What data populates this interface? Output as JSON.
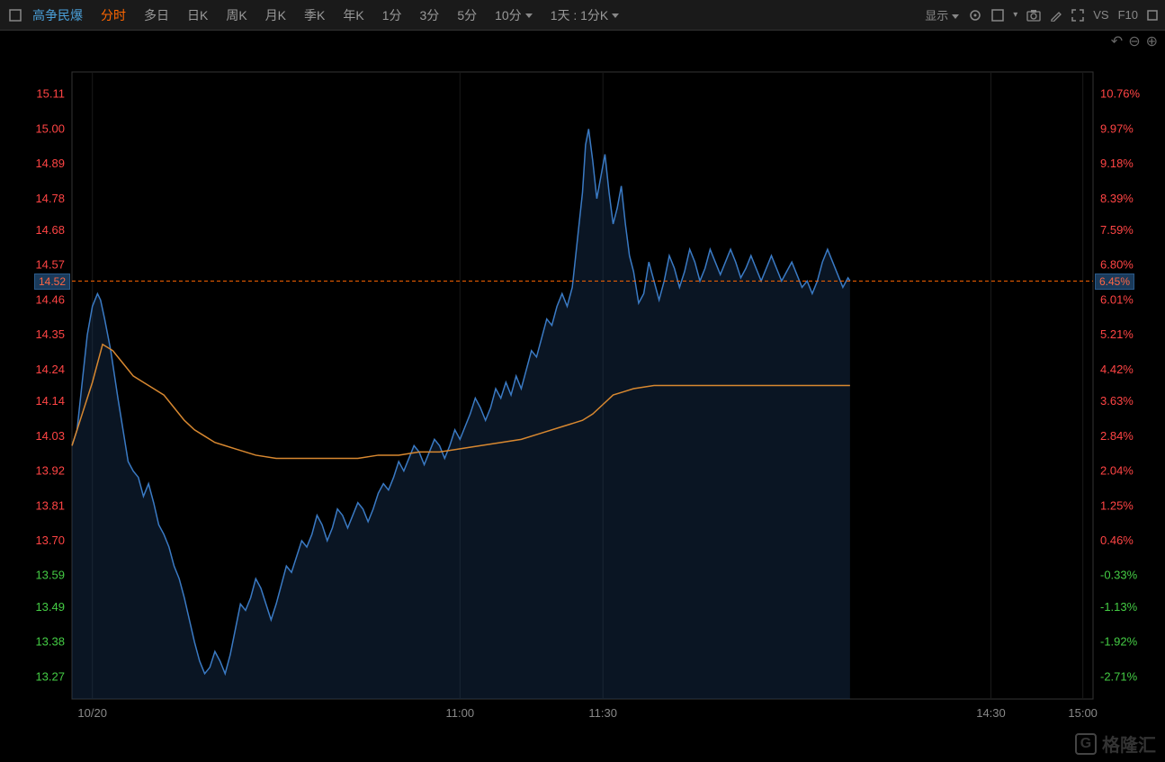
{
  "toolbar": {
    "stock_name": "高争民爆",
    "tabs": [
      {
        "label": "分时",
        "active": true
      },
      {
        "label": "多日",
        "active": false
      },
      {
        "label": "日K",
        "active": false
      },
      {
        "label": "周K",
        "active": false
      },
      {
        "label": "月K",
        "active": false
      },
      {
        "label": "季K",
        "active": false
      },
      {
        "label": "年K",
        "active": false
      },
      {
        "label": "1分",
        "active": false
      },
      {
        "label": "3分",
        "active": false
      },
      {
        "label": "5分",
        "active": false
      },
      {
        "label": "10分",
        "active": false,
        "dropdown": true
      },
      {
        "label": "1天 : 1分K",
        "active": false,
        "dropdown": true
      }
    ],
    "display_label": "显示",
    "vs_label": "VS",
    "f10_label": "F10"
  },
  "chart": {
    "type": "line",
    "background_color": "#000000",
    "grid_color": "#1a1a1a",
    "axis_color": "#333333",
    "price_line_color": "#3a7ac4",
    "price_fill_color": "rgba(30,60,100,0.35)",
    "avg_line_color": "#d88830",
    "current_line_color": "#ff6600",
    "left_axis": {
      "ticks": [
        {
          "v": 15.11,
          "color": "#ff4444"
        },
        {
          "v": 15.0,
          "color": "#ff4444"
        },
        {
          "v": 14.89,
          "color": "#ff4444"
        },
        {
          "v": 14.78,
          "color": "#ff4444"
        },
        {
          "v": 14.68,
          "color": "#ff4444"
        },
        {
          "v": 14.57,
          "color": "#ff4444"
        },
        {
          "v": 14.46,
          "color": "#ff4444"
        },
        {
          "v": 14.35,
          "color": "#ff4444"
        },
        {
          "v": 14.24,
          "color": "#ff4444"
        },
        {
          "v": 14.14,
          "color": "#ff4444"
        },
        {
          "v": 14.03,
          "color": "#ff4444"
        },
        {
          "v": 13.92,
          "color": "#ff4444"
        },
        {
          "v": 13.81,
          "color": "#ff4444"
        },
        {
          "v": 13.7,
          "color": "#ff4444"
        },
        {
          "v": 13.59,
          "color": "#44cc44"
        },
        {
          "v": 13.49,
          "color": "#44cc44"
        },
        {
          "v": 13.38,
          "color": "#44cc44"
        },
        {
          "v": 13.27,
          "color": "#44cc44"
        }
      ],
      "min": 13.2,
      "max": 15.18
    },
    "right_axis": {
      "ticks": [
        {
          "v": "10.76%",
          "y": 15.11,
          "color": "#ff4444"
        },
        {
          "v": "9.97%",
          "y": 15.0,
          "color": "#ff4444"
        },
        {
          "v": "9.18%",
          "y": 14.89,
          "color": "#ff4444"
        },
        {
          "v": "8.39%",
          "y": 14.78,
          "color": "#ff4444"
        },
        {
          "v": "7.59%",
          "y": 14.68,
          "color": "#ff4444"
        },
        {
          "v": "6.80%",
          "y": 14.57,
          "color": "#ff4444"
        },
        {
          "v": "6.01%",
          "y": 14.46,
          "color": "#ff4444"
        },
        {
          "v": "5.21%",
          "y": 14.35,
          "color": "#ff4444"
        },
        {
          "v": "4.42%",
          "y": 14.24,
          "color": "#ff4444"
        },
        {
          "v": "3.63%",
          "y": 14.14,
          "color": "#ff4444"
        },
        {
          "v": "2.84%",
          "y": 14.03,
          "color": "#ff4444"
        },
        {
          "v": "2.04%",
          "y": 13.92,
          "color": "#ff4444"
        },
        {
          "v": "1.25%",
          "y": 13.81,
          "color": "#ff4444"
        },
        {
          "v": "0.46%",
          "y": 13.7,
          "color": "#ff4444"
        },
        {
          "v": "-0.33%",
          "y": 13.59,
          "color": "#44cc44"
        },
        {
          "v": "-1.13%",
          "y": 13.49,
          "color": "#44cc44"
        },
        {
          "v": "-1.92%",
          "y": 13.38,
          "color": "#44cc44"
        },
        {
          "v": "-2.71%",
          "y": 13.27,
          "color": "#44cc44"
        }
      ]
    },
    "x_axis": {
      "labels": [
        {
          "x": 0.02,
          "label": "10/20"
        },
        {
          "x": 0.38,
          "label": "11:00"
        },
        {
          "x": 0.52,
          "label": "11:30"
        },
        {
          "x": 0.9,
          "label": "14:30"
        },
        {
          "x": 0.99,
          "label": "15:00"
        }
      ],
      "color": "#888888"
    },
    "current_price": 14.52,
    "current_price_label": "14.52",
    "current_pct_label": "6.45%",
    "price_series": [
      [
        0.0,
        14.0
      ],
      [
        0.005,
        14.05
      ],
      [
        0.01,
        14.2
      ],
      [
        0.015,
        14.35
      ],
      [
        0.02,
        14.44
      ],
      [
        0.025,
        14.48
      ],
      [
        0.028,
        14.46
      ],
      [
        0.032,
        14.4
      ],
      [
        0.038,
        14.3
      ],
      [
        0.045,
        14.15
      ],
      [
        0.05,
        14.05
      ],
      [
        0.055,
        13.95
      ],
      [
        0.06,
        13.92
      ],
      [
        0.065,
        13.9
      ],
      [
        0.07,
        13.84
      ],
      [
        0.075,
        13.88
      ],
      [
        0.08,
        13.82
      ],
      [
        0.085,
        13.75
      ],
      [
        0.09,
        13.72
      ],
      [
        0.095,
        13.68
      ],
      [
        0.1,
        13.62
      ],
      [
        0.105,
        13.58
      ],
      [
        0.11,
        13.52
      ],
      [
        0.115,
        13.45
      ],
      [
        0.12,
        13.38
      ],
      [
        0.125,
        13.32
      ],
      [
        0.13,
        13.28
      ],
      [
        0.135,
        13.3
      ],
      [
        0.14,
        13.35
      ],
      [
        0.145,
        13.32
      ],
      [
        0.15,
        13.28
      ],
      [
        0.155,
        13.34
      ],
      [
        0.16,
        13.42
      ],
      [
        0.165,
        13.5
      ],
      [
        0.17,
        13.48
      ],
      [
        0.175,
        13.52
      ],
      [
        0.18,
        13.58
      ],
      [
        0.185,
        13.55
      ],
      [
        0.19,
        13.5
      ],
      [
        0.195,
        13.45
      ],
      [
        0.2,
        13.5
      ],
      [
        0.205,
        13.56
      ],
      [
        0.21,
        13.62
      ],
      [
        0.215,
        13.6
      ],
      [
        0.22,
        13.65
      ],
      [
        0.225,
        13.7
      ],
      [
        0.23,
        13.68
      ],
      [
        0.235,
        13.72
      ],
      [
        0.24,
        13.78
      ],
      [
        0.245,
        13.75
      ],
      [
        0.25,
        13.7
      ],
      [
        0.255,
        13.74
      ],
      [
        0.26,
        13.8
      ],
      [
        0.265,
        13.78
      ],
      [
        0.27,
        13.74
      ],
      [
        0.275,
        13.78
      ],
      [
        0.28,
        13.82
      ],
      [
        0.285,
        13.8
      ],
      [
        0.29,
        13.76
      ],
      [
        0.295,
        13.8
      ],
      [
        0.3,
        13.85
      ],
      [
        0.305,
        13.88
      ],
      [
        0.31,
        13.86
      ],
      [
        0.315,
        13.9
      ],
      [
        0.32,
        13.95
      ],
      [
        0.325,
        13.92
      ],
      [
        0.33,
        13.96
      ],
      [
        0.335,
        14.0
      ],
      [
        0.34,
        13.98
      ],
      [
        0.345,
        13.94
      ],
      [
        0.35,
        13.98
      ],
      [
        0.355,
        14.02
      ],
      [
        0.36,
        14.0
      ],
      [
        0.365,
        13.96
      ],
      [
        0.37,
        14.0
      ],
      [
        0.375,
        14.05
      ],
      [
        0.38,
        14.02
      ],
      [
        0.385,
        14.06
      ],
      [
        0.39,
        14.1
      ],
      [
        0.395,
        14.15
      ],
      [
        0.4,
        14.12
      ],
      [
        0.405,
        14.08
      ],
      [
        0.41,
        14.12
      ],
      [
        0.415,
        14.18
      ],
      [
        0.42,
        14.15
      ],
      [
        0.425,
        14.2
      ],
      [
        0.43,
        14.16
      ],
      [
        0.435,
        14.22
      ],
      [
        0.44,
        14.18
      ],
      [
        0.445,
        14.24
      ],
      [
        0.45,
        14.3
      ],
      [
        0.455,
        14.28
      ],
      [
        0.46,
        14.34
      ],
      [
        0.465,
        14.4
      ],
      [
        0.47,
        14.38
      ],
      [
        0.475,
        14.44
      ],
      [
        0.48,
        14.48
      ],
      [
        0.485,
        14.44
      ],
      [
        0.49,
        14.5
      ],
      [
        0.495,
        14.65
      ],
      [
        0.5,
        14.8
      ],
      [
        0.503,
        14.95
      ],
      [
        0.506,
        15.0
      ],
      [
        0.51,
        14.9
      ],
      [
        0.514,
        14.78
      ],
      [
        0.518,
        14.85
      ],
      [
        0.522,
        14.92
      ],
      [
        0.526,
        14.8
      ],
      [
        0.53,
        14.7
      ],
      [
        0.534,
        14.75
      ],
      [
        0.538,
        14.82
      ],
      [
        0.542,
        14.7
      ],
      [
        0.546,
        14.6
      ],
      [
        0.55,
        14.55
      ],
      [
        0.555,
        14.45
      ],
      [
        0.56,
        14.48
      ],
      [
        0.565,
        14.58
      ],
      [
        0.57,
        14.52
      ],
      [
        0.575,
        14.46
      ],
      [
        0.58,
        14.52
      ],
      [
        0.585,
        14.6
      ],
      [
        0.59,
        14.56
      ],
      [
        0.595,
        14.5
      ],
      [
        0.6,
        14.55
      ],
      [
        0.605,
        14.62
      ],
      [
        0.61,
        14.58
      ],
      [
        0.615,
        14.52
      ],
      [
        0.62,
        14.56
      ],
      [
        0.625,
        14.62
      ],
      [
        0.63,
        14.58
      ],
      [
        0.635,
        14.54
      ],
      [
        0.64,
        14.58
      ],
      [
        0.645,
        14.62
      ],
      [
        0.65,
        14.58
      ],
      [
        0.655,
        14.53
      ],
      [
        0.66,
        14.56
      ],
      [
        0.665,
        14.6
      ],
      [
        0.67,
        14.56
      ],
      [
        0.675,
        14.52
      ],
      [
        0.68,
        14.56
      ],
      [
        0.685,
        14.6
      ],
      [
        0.69,
        14.56
      ],
      [
        0.695,
        14.52
      ],
      [
        0.7,
        14.55
      ],
      [
        0.705,
        14.58
      ],
      [
        0.71,
        14.54
      ],
      [
        0.715,
        14.5
      ],
      [
        0.72,
        14.52
      ],
      [
        0.725,
        14.48
      ],
      [
        0.73,
        14.52
      ],
      [
        0.735,
        14.58
      ],
      [
        0.74,
        14.62
      ],
      [
        0.745,
        14.58
      ],
      [
        0.75,
        14.54
      ],
      [
        0.755,
        14.5
      ],
      [
        0.76,
        14.53
      ],
      [
        0.762,
        14.52
      ]
    ],
    "avg_series": [
      [
        0.0,
        14.0
      ],
      [
        0.01,
        14.1
      ],
      [
        0.02,
        14.2
      ],
      [
        0.03,
        14.32
      ],
      [
        0.04,
        14.3
      ],
      [
        0.05,
        14.26
      ],
      [
        0.06,
        14.22
      ],
      [
        0.07,
        14.2
      ],
      [
        0.08,
        14.18
      ],
      [
        0.09,
        14.16
      ],
      [
        0.1,
        14.12
      ],
      [
        0.11,
        14.08
      ],
      [
        0.12,
        14.05
      ],
      [
        0.13,
        14.03
      ],
      [
        0.14,
        14.01
      ],
      [
        0.15,
        14.0
      ],
      [
        0.16,
        13.99
      ],
      [
        0.17,
        13.98
      ],
      [
        0.18,
        13.97
      ],
      [
        0.2,
        13.96
      ],
      [
        0.22,
        13.96
      ],
      [
        0.24,
        13.96
      ],
      [
        0.26,
        13.96
      ],
      [
        0.28,
        13.96
      ],
      [
        0.3,
        13.97
      ],
      [
        0.32,
        13.97
      ],
      [
        0.34,
        13.98
      ],
      [
        0.36,
        13.98
      ],
      [
        0.38,
        13.99
      ],
      [
        0.4,
        14.0
      ],
      [
        0.42,
        14.01
      ],
      [
        0.44,
        14.02
      ],
      [
        0.46,
        14.04
      ],
      [
        0.48,
        14.06
      ],
      [
        0.5,
        14.08
      ],
      [
        0.51,
        14.1
      ],
      [
        0.52,
        14.13
      ],
      [
        0.53,
        14.16
      ],
      [
        0.54,
        14.17
      ],
      [
        0.55,
        14.18
      ],
      [
        0.57,
        14.19
      ],
      [
        0.6,
        14.19
      ],
      [
        0.65,
        14.19
      ],
      [
        0.7,
        14.19
      ],
      [
        0.75,
        14.19
      ],
      [
        0.762,
        14.19
      ]
    ]
  },
  "watermark": "格隆汇"
}
